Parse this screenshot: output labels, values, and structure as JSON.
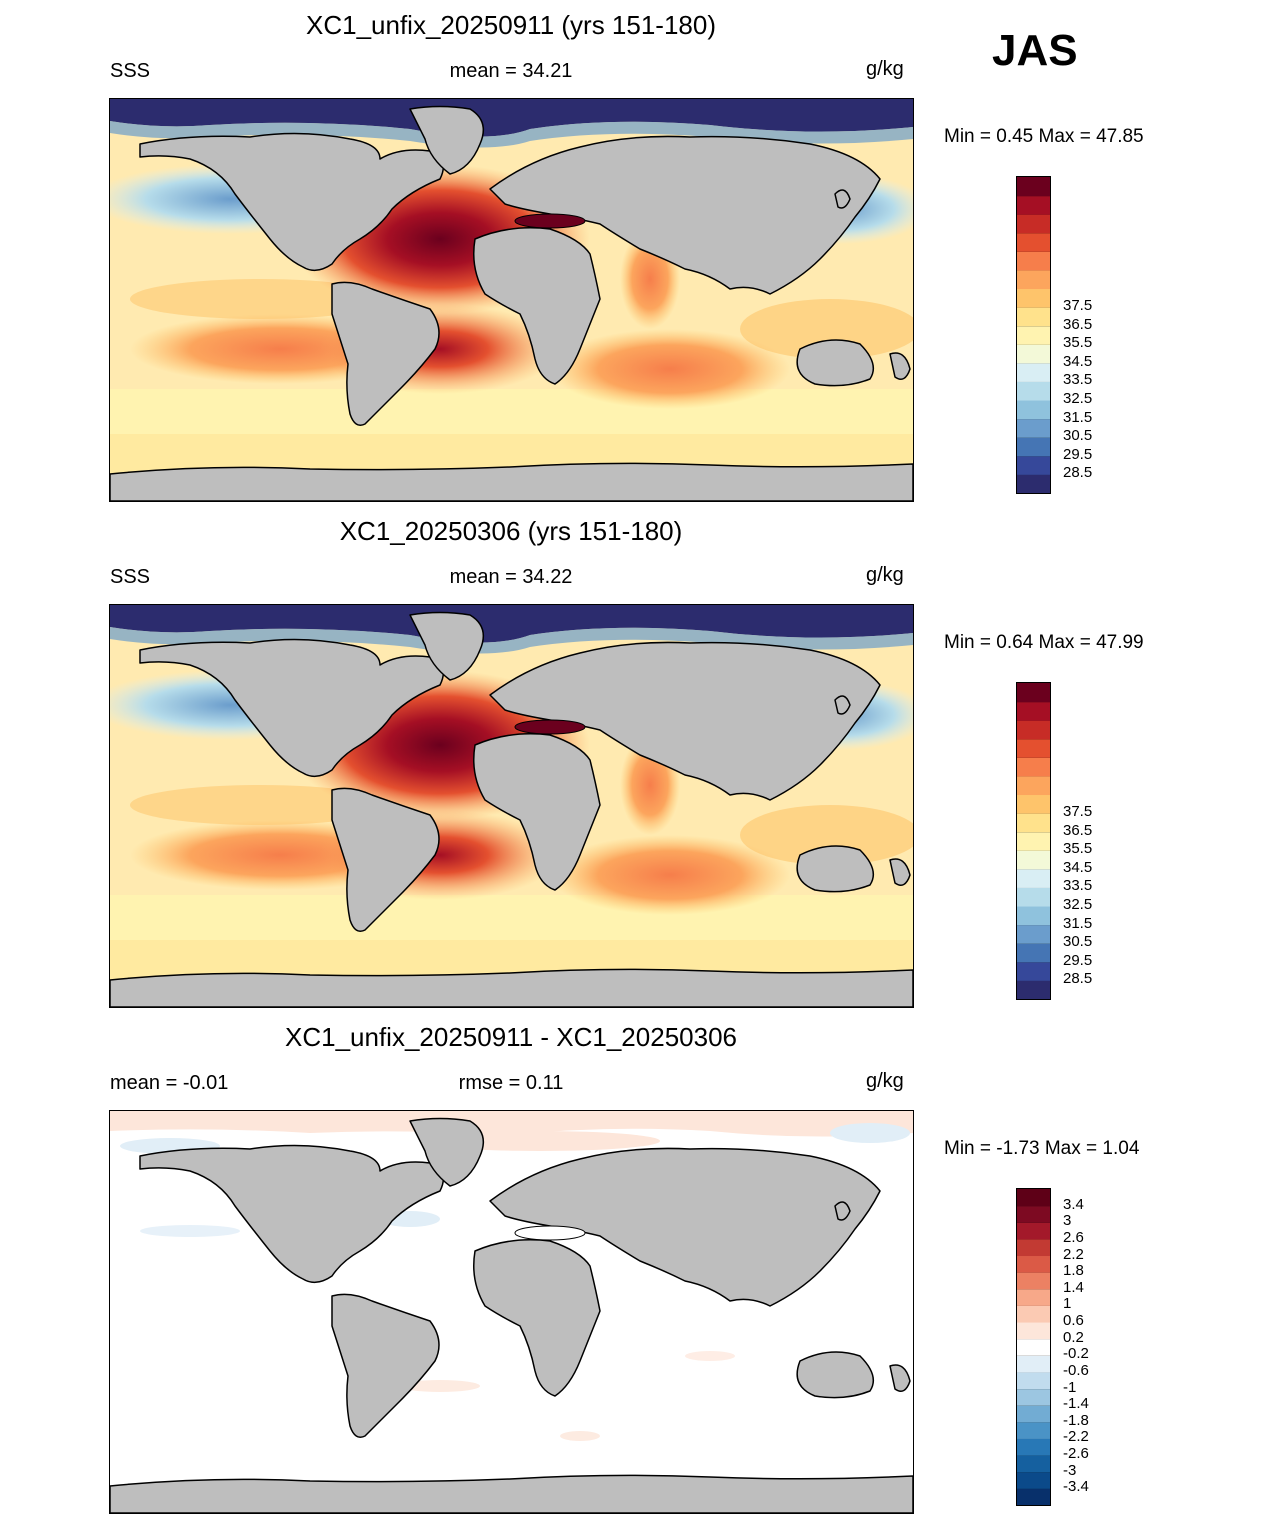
{
  "season": "JAS",
  "land_color": "#bebebe",
  "chart_data": [
    {
      "type": "heatmap",
      "title": "XC1_unfix_20250911 (yrs 151-180)",
      "left_label": "SSS",
      "center_label": "mean =  34.21",
      "units": "g/kg",
      "minmax": "Min =   0.45 Max =  47.85",
      "colorbar": {
        "levels": [
          "28.5",
          "29.5",
          "30.5",
          "31.5",
          "32.5",
          "33.5",
          "34.5",
          "35.5",
          "36.5",
          "37.5"
        ],
        "colors": [
          "#2c2c6e",
          "#36489a",
          "#4575b4",
          "#6b9dcc",
          "#8fc2dd",
          "#b6dcea",
          "#d9eef4",
          "#f3f9d8",
          "#fff3b0",
          "#ffe28c",
          "#fec46b",
          "#fca55d",
          "#f67e4b",
          "#e4502f",
          "#c72c26",
          "#a50f24",
          "#6b001e"
        ]
      }
    },
    {
      "type": "heatmap",
      "title": "XC1_20250306 (yrs 151-180)",
      "left_label": "SSS",
      "center_label": "mean =  34.22",
      "units": "g/kg",
      "minmax": "Min =   0.64 Max =  47.99",
      "colorbar": {
        "levels": [
          "28.5",
          "29.5",
          "30.5",
          "31.5",
          "32.5",
          "33.5",
          "34.5",
          "35.5",
          "36.5",
          "37.5"
        ],
        "colors": [
          "#2c2c6e",
          "#36489a",
          "#4575b4",
          "#6b9dcc",
          "#8fc2dd",
          "#b6dcea",
          "#d9eef4",
          "#f3f9d8",
          "#fff3b0",
          "#ffe28c",
          "#fec46b",
          "#fca55d",
          "#f67e4b",
          "#e4502f",
          "#c72c26",
          "#a50f24",
          "#6b001e"
        ]
      }
    },
    {
      "type": "heatmap",
      "title": "XC1_unfix_20250911 - XC1_20250306",
      "left_label": "mean =  -0.01",
      "center_label": "rmse =   0.11",
      "units": "g/kg",
      "minmax": "Min =  -1.73 Max =   1.04",
      "colorbar": {
        "levels": [
          "-3.4",
          "-3",
          "-2.6",
          "-2.2",
          "-1.8",
          "-1.4",
          "-1",
          "-0.6",
          "-0.2",
          "0.2",
          "0.6",
          "1",
          "1.4",
          "1.8",
          "2.2",
          "2.6",
          "3",
          "3.4"
        ],
        "colors": [
          "#08306b",
          "#0b4a8a",
          "#15609f",
          "#2878b6",
          "#4a93c6",
          "#72acd3",
          "#9cc6e1",
          "#c1dcee",
          "#e1eef7",
          "#ffffff",
          "#fde6da",
          "#fbcab3",
          "#f7a889",
          "#ec8163",
          "#db5a46",
          "#c23a33",
          "#a3192a",
          "#7d0a22",
          "#5e0017"
        ]
      }
    }
  ]
}
